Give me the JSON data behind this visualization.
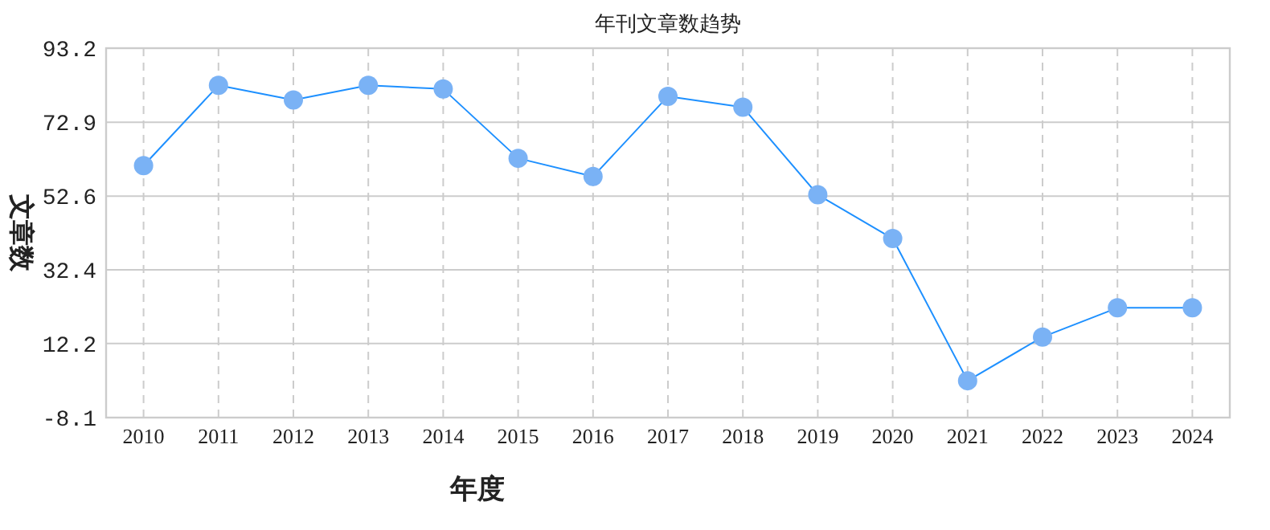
{
  "chart_data": {
    "type": "line",
    "title": "年刊文章数趋势",
    "xlabel": "年度",
    "ylabel": "文章数",
    "categories": [
      "2010",
      "2011",
      "2012",
      "2013",
      "2014",
      "2015",
      "2016",
      "2017",
      "2018",
      "2019",
      "2020",
      "2021",
      "2022",
      "2023",
      "2024"
    ],
    "series": [
      {
        "color": "#1e90ff",
        "values": [
          61,
          83,
          79,
          83,
          82,
          63,
          58,
          80,
          77,
          53,
          41,
          2,
          14,
          22,
          22
        ]
      }
    ],
    "ylim": [
      -8.1,
      93.2
    ],
    "yticks": [
      -8.1,
      12.2,
      32.4,
      52.6,
      72.9,
      93.2
    ],
    "grid": true,
    "marker": "circle",
    "line_style": "solid"
  }
}
